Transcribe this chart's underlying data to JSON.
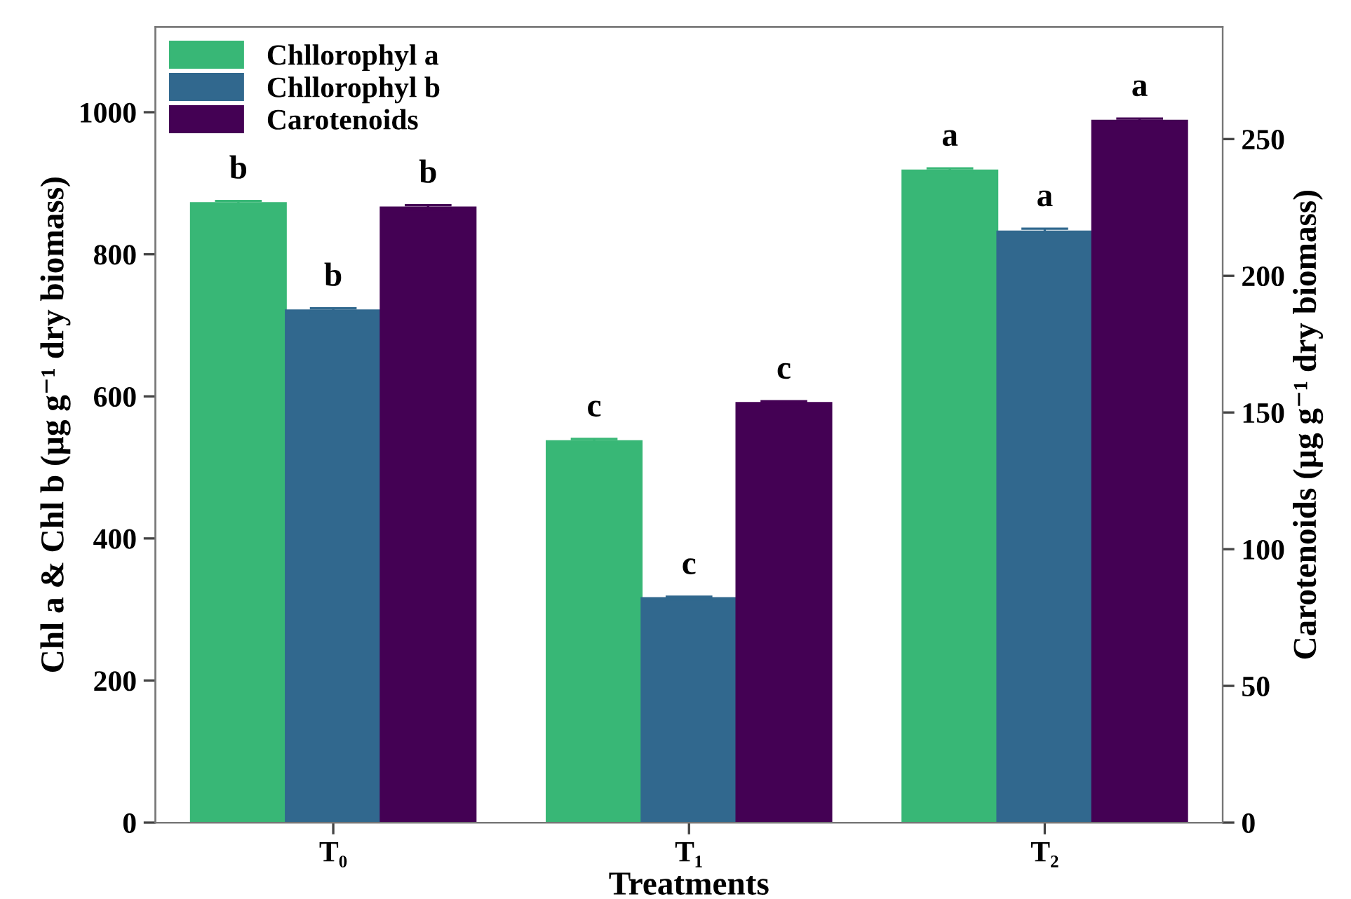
{
  "chart_data": {
    "type": "bar",
    "categories": [
      "T₀",
      "T₁",
      "T₂"
    ],
    "xlabel": "Treatments",
    "ylabel": "Chl a & Chl b (µg g⁻¹ dry biomass)",
    "y2label": "Carotenoids (µg g⁻¹ dry biomass)",
    "series": [
      {
        "name": "Chllorophyl a",
        "color": "#38b776",
        "values": [
          872,
          537,
          918
        ],
        "errors": [
          3,
          3,
          3
        ],
        "value_labels": [
          "b",
          "c",
          "a"
        ]
      },
      {
        "name": "Chllorophyl b",
        "color": "#31688e",
        "values": [
          721,
          316,
          832
        ],
        "errors": [
          3,
          2,
          4
        ],
        "value_labels": [
          "b",
          "c",
          "a"
        ]
      },
      {
        "name": "Carotenoids",
        "color": "#440154",
        "axis": "y2",
        "values": [
          225,
          153.5,
          256.7
        ],
        "errors": [
          0.8,
          0.6,
          0.8
        ],
        "value_labels": [
          "b",
          "c",
          "a"
        ]
      }
    ],
    "ylim": [
      0,
      1120
    ],
    "yticks": [
      0,
      200,
      400,
      600,
      800,
      1000
    ],
    "y2lim": [
      0,
      291
    ],
    "y2ticks": [
      0,
      50,
      100,
      150,
      200,
      250
    ],
    "legend": "top left",
    "grid": false
  }
}
